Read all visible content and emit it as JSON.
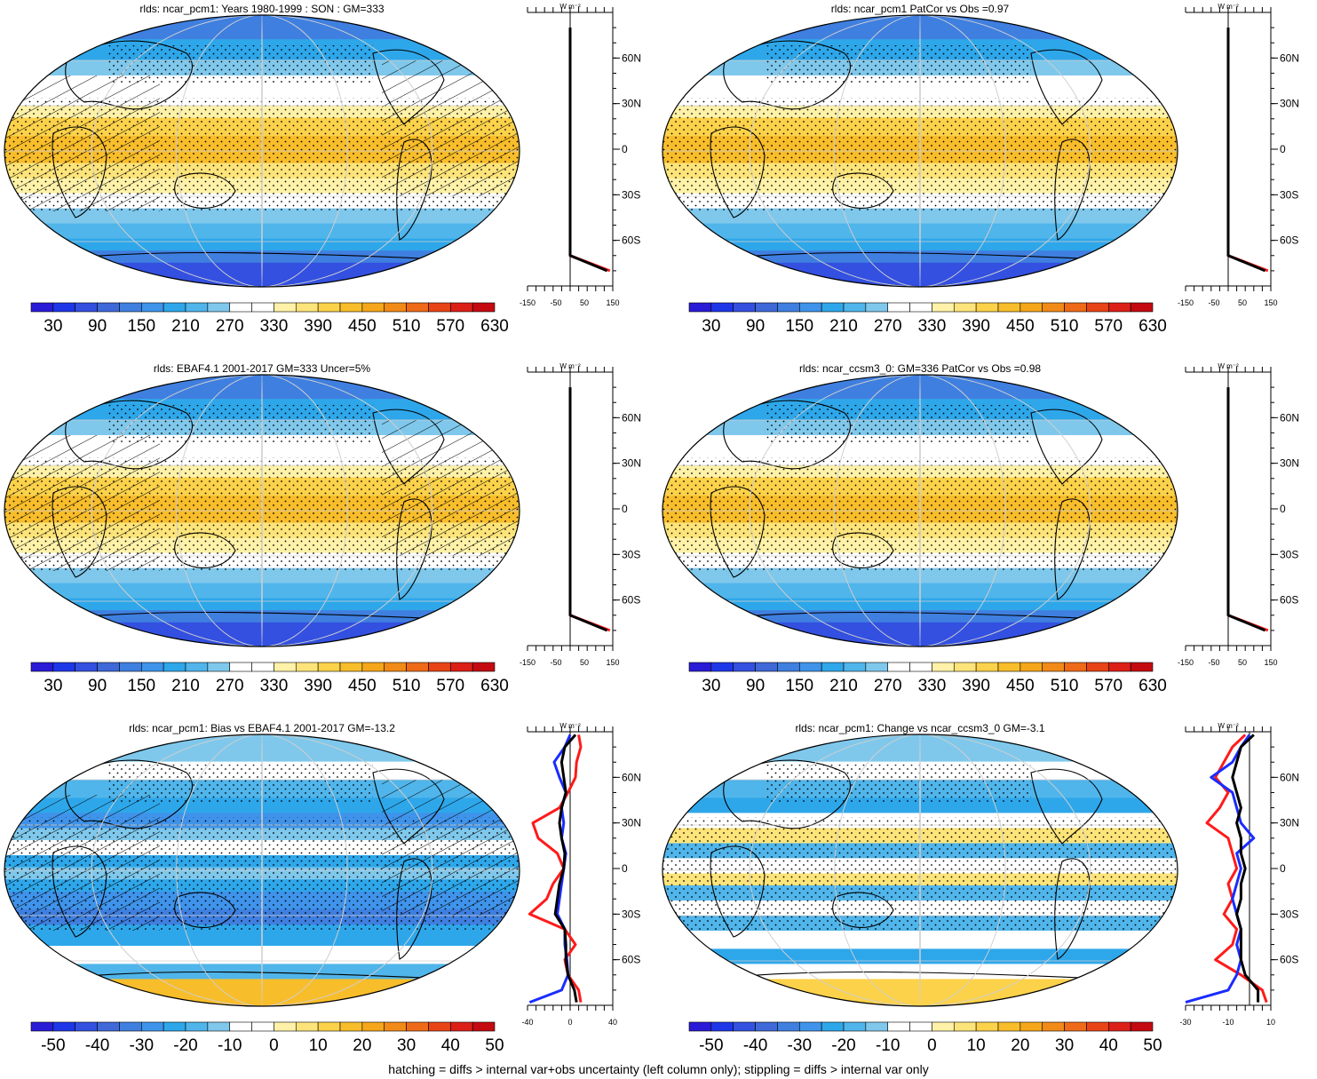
{
  "footer": "hatching = diffs > internal var+obs uncertainty (left column only); stippling = diffs > internal var only",
  "absolute_colors": [
    "#2a1bd6",
    "#1d36e8",
    "#3350e0",
    "#3f68d8",
    "#3f7fe0",
    "#3f93ea",
    "#2ea7ea",
    "#50b5ea",
    "#7fc8ec",
    "#ffffff",
    "#ffffff",
    "#fff2a8",
    "#fde47a",
    "#fcd24a",
    "#f8bd2a",
    "#f5a61a",
    "#f28a18",
    "#ee6a18",
    "#e84418",
    "#dc2018",
    "#c40a10"
  ],
  "diff_colors": [
    "#2a1bd6",
    "#1d36e8",
    "#3350e0",
    "#3f68d8",
    "#3f7fe0",
    "#3f93ea",
    "#2ea7ea",
    "#50b5ea",
    "#7fc8ec",
    "#ffffff",
    "#ffffff",
    "#fff2a8",
    "#fde47a",
    "#fcd24a",
    "#f8bd2a",
    "#f5a61a",
    "#f28a18",
    "#ee6a18",
    "#e84418",
    "#dc2018",
    "#c40a10"
  ],
  "panels": [
    {
      "title": "rlds: ncar_pcm1: Years 1980-1999 : SON : GM=333",
      "cb_labels": [
        "30",
        "90",
        "150",
        "210",
        "270",
        "330",
        "390",
        "450",
        "510",
        "570",
        "630"
      ],
      "prof_ticks": [
        "-150",
        "-50",
        "50",
        "150"
      ],
      "unit": "W m⁻²",
      "lat_labels": [
        "60N",
        "30N",
        "0",
        "30S",
        "60S"
      ],
      "hatch": true
    },
    {
      "title": "rlds: ncar_pcm1 PatCor vs Obs =0.97",
      "cb_labels": [
        "30",
        "90",
        "150",
        "210",
        "270",
        "330",
        "390",
        "450",
        "510",
        "570",
        "630"
      ],
      "prof_ticks": [
        "-150",
        "-50",
        "50",
        "150"
      ],
      "unit": "W m⁻²",
      "lat_labels": [
        "60N",
        "30N",
        "0",
        "30S",
        "60S"
      ],
      "hatch": false
    },
    {
      "title": "rlds: EBAF4.1 2001-2017 GM=333 Uncer=5%",
      "cb_labels": [
        "30",
        "90",
        "150",
        "210",
        "270",
        "330",
        "390",
        "450",
        "510",
        "570",
        "630"
      ],
      "prof_ticks": [
        "-150",
        "-50",
        "50",
        "150"
      ],
      "unit": "W m⁻²",
      "lat_labels": [
        "60N",
        "30N",
        "0",
        "30S",
        "60S"
      ],
      "hatch": true
    },
    {
      "title": "rlds: ncar_ccsm3_0: GM=336 PatCor vs Obs =0.98",
      "cb_labels": [
        "30",
        "90",
        "150",
        "210",
        "270",
        "330",
        "390",
        "450",
        "510",
        "570",
        "630"
      ],
      "prof_ticks": [
        "-150",
        "-50",
        "50",
        "150"
      ],
      "unit": "W m⁻²",
      "lat_labels": [
        "60N",
        "30N",
        "0",
        "30S",
        "60S"
      ],
      "hatch": false
    },
    {
      "title": "rlds: ncar_pcm1: Bias vs EBAF4.1 2001-2017  GM=-13.2",
      "cb_labels": [
        "-50",
        "-40",
        "-30",
        "-20",
        "-10",
        "0",
        "10",
        "20",
        "30",
        "40",
        "50"
      ],
      "prof_ticks": [
        "-40",
        "0",
        "40"
      ],
      "unit": "W m⁻²",
      "lat_labels": [
        "60N",
        "30N",
        "0",
        "30S",
        "60S"
      ],
      "hatch": true
    },
    {
      "title": "rlds: ncar_pcm1: Change vs ncar_ccsm3_0 GM=-3.1",
      "cb_labels": [
        "-50",
        "-40",
        "-30",
        "-20",
        "-10",
        "0",
        "10",
        "20",
        "30",
        "40",
        "50"
      ],
      "prof_ticks": [
        "-30",
        "-10",
        "10"
      ],
      "unit": "W m⁻²",
      "lat_labels": [
        "60N",
        "30N",
        "0",
        "30S",
        "60S"
      ],
      "hatch": false
    }
  ],
  "chart_data": [
    {
      "type": "heatmap",
      "title": "rlds: ncar_pcm1: Years 1980-1999 : SON : GM=333",
      "colorbar": [
        30,
        90,
        150,
        210,
        270,
        330,
        390,
        450,
        510,
        570,
        630
      ],
      "profile": {
        "xlim": [
          -150,
          150
        ],
        "lat": [
          80,
          60,
          45,
          30,
          15,
          0,
          -15,
          -30,
          -45,
          -60,
          -70,
          -80
        ],
        "series": [
          {
            "color": "red",
            "values": [
              0,
              0,
              0,
              0,
              0,
              0,
              0,
              0,
              0,
              0,
              0,
              140
            ]
          },
          {
            "color": "black",
            "values": [
              0,
              0,
              0,
              0,
              0,
              0,
              0,
              0,
              0,
              0,
              0,
              130
            ]
          }
        ]
      }
    },
    {
      "type": "heatmap",
      "title": "rlds: ncar_pcm1 PatCor vs Obs =0.97",
      "colorbar": [
        30,
        90,
        150,
        210,
        270,
        330,
        390,
        450,
        510,
        570,
        630
      ],
      "profile": {
        "xlim": [
          -150,
          150
        ],
        "lat": [
          80,
          60,
          45,
          30,
          15,
          0,
          -15,
          -30,
          -45,
          -60,
          -70,
          -80
        ],
        "series": [
          {
            "color": "red",
            "values": [
              0,
              0,
              0,
              0,
              0,
              0,
              0,
              0,
              0,
              0,
              0,
              140
            ]
          },
          {
            "color": "black",
            "values": [
              0,
              0,
              0,
              0,
              0,
              0,
              0,
              0,
              0,
              0,
              0,
              130
            ]
          }
        ]
      }
    },
    {
      "type": "heatmap",
      "title": "rlds: EBAF4.1 2001-2017 GM=333 Uncer=5%",
      "colorbar": [
        30,
        90,
        150,
        210,
        270,
        330,
        390,
        450,
        510,
        570,
        630
      ],
      "profile": {
        "xlim": [
          -150,
          150
        ],
        "lat": [
          80,
          60,
          45,
          30,
          15,
          0,
          -15,
          -30,
          -45,
          -60,
          -70,
          -80
        ],
        "series": [
          {
            "color": "red",
            "values": [
              0,
              0,
              0,
              0,
              0,
              0,
              0,
              0,
              0,
              0,
              0,
              140
            ]
          },
          {
            "color": "black",
            "values": [
              0,
              0,
              0,
              0,
              0,
              0,
              0,
              0,
              0,
              0,
              0,
              130
            ]
          }
        ]
      }
    },
    {
      "type": "heatmap",
      "title": "rlds: ncar_ccsm3_0: GM=336 PatCor vs Obs =0.98",
      "colorbar": [
        30,
        90,
        150,
        210,
        270,
        330,
        390,
        450,
        510,
        570,
        630
      ],
      "profile": {
        "xlim": [
          -150,
          150
        ],
        "lat": [
          80,
          60,
          45,
          30,
          15,
          0,
          -15,
          -30,
          -45,
          -60,
          -70,
          -80
        ],
        "series": [
          {
            "color": "red",
            "values": [
              0,
              0,
              0,
              0,
              0,
              0,
              0,
              0,
              0,
              0,
              0,
              140
            ]
          },
          {
            "color": "black",
            "values": [
              0,
              0,
              0,
              0,
              0,
              0,
              0,
              0,
              0,
              0,
              0,
              130
            ]
          }
        ]
      }
    },
    {
      "type": "heatmap",
      "title": "rlds: ncar_pcm1: Bias vs EBAF4.1 2001-2017  GM=-13.2",
      "colorbar": [
        -50,
        -40,
        -30,
        -20,
        -10,
        0,
        10,
        20,
        30,
        40,
        50
      ],
      "profile": {
        "xlim": [
          -40,
          40
        ],
        "lat": [
          88,
          80,
          70,
          60,
          50,
          40,
          30,
          20,
          10,
          0,
          -10,
          -20,
          -30,
          -40,
          -50,
          -60,
          -70,
          -80,
          -88
        ],
        "series": [
          {
            "color": "red",
            "values": [
              8,
              10,
              6,
              5,
              -2,
              -10,
              -35,
              -30,
              -12,
              -6,
              -16,
              -22,
              -38,
              -5,
              5,
              -5,
              -2,
              8,
              10
            ]
          },
          {
            "color": "blue",
            "values": [
              0,
              -5,
              -15,
              -10,
              -4,
              -8,
              -6,
              -8,
              -4,
              -6,
              -8,
              -10,
              -12,
              -5,
              -5,
              -3,
              -2,
              -8,
              -38
            ]
          },
          {
            "color": "black",
            "values": [
              5,
              -5,
              -8,
              -6,
              -4,
              -8,
              -10,
              -8,
              -5,
              -6,
              -10,
              -12,
              -14,
              -5,
              -4,
              -4,
              -2,
              4,
              6
            ]
          }
        ]
      }
    },
    {
      "type": "heatmap",
      "title": "rlds: ncar_pcm1: Change vs ncar_ccsm3_0 GM=-3.1",
      "colorbar": [
        -50,
        -40,
        -30,
        -20,
        -10,
        0,
        10,
        20,
        30,
        40,
        50
      ],
      "profile": {
        "xlim": [
          -30,
          10
        ],
        "lat": [
          88,
          80,
          70,
          60,
          50,
          40,
          30,
          20,
          10,
          0,
          -10,
          -20,
          -30,
          -40,
          -50,
          -60,
          -70,
          -80,
          -88
        ],
        "series": [
          {
            "color": "red",
            "values": [
              -2,
              -8,
              -12,
              -16,
              -10,
              -14,
              -20,
              -10,
              -8,
              -6,
              -10,
              -8,
              -12,
              -6,
              -8,
              -16,
              -4,
              6,
              8
            ]
          },
          {
            "color": "blue",
            "values": [
              0,
              -4,
              -8,
              -18,
              -8,
              -6,
              -4,
              2,
              -6,
              -4,
              -6,
              -8,
              -6,
              -4,
              -6,
              -4,
              -6,
              -10,
              -30
            ]
          },
          {
            "color": "black",
            "values": [
              2,
              -4,
              -6,
              -8,
              -6,
              -4,
              -6,
              -4,
              -4,
              -2,
              -4,
              -4,
              -6,
              -4,
              -4,
              -4,
              -2,
              4,
              4
            ]
          }
        ]
      }
    }
  ]
}
